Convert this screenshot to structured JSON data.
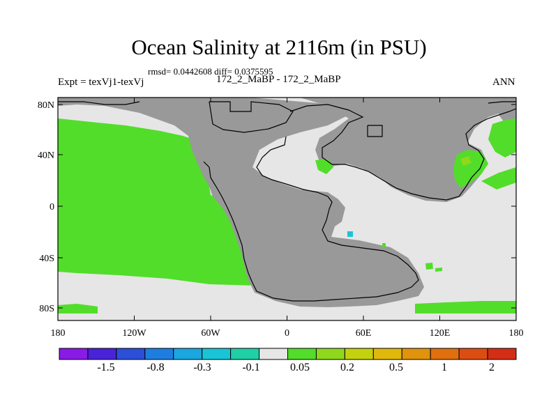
{
  "title": "Ocean Salinity at 2116m (in PSU)",
  "stats": "rmsd= 0.0442608 diff= 0.0375595",
  "experiment": "Expt = texVj1-texVj",
  "case_label": "172_2_MaBP - 172_2_MaBP",
  "season": "ANN",
  "lat_ticks": [
    "80N",
    "40N",
    "0",
    "40S",
    "80S"
  ],
  "lon_ticks": [
    "180",
    "120W",
    "60W",
    "0",
    "60E",
    "120E",
    "180"
  ],
  "colorbar": {
    "colors": [
      "#8a1ae6",
      "#4a22d8",
      "#2b4fd8",
      "#1e7ee0",
      "#1aa6df",
      "#19c4d6",
      "#20cfa6",
      "#e6e6e6",
      "#52dd2a",
      "#8fd81c",
      "#c4d10e",
      "#e0b80b",
      "#e0930b",
      "#e0700e",
      "#dd4d12",
      "#d42e16"
    ],
    "labels": [
      "-1.5",
      "-0.8",
      "-0.3",
      "-0.1",
      "0.05",
      "0.2",
      "0.5",
      "1",
      "2"
    ]
  },
  "legend": {
    "land": "#999999",
    "neutral": "#e6e6e6",
    "positive": "#52dd2a",
    "high": "#8fd81c",
    "negative": "#19c4d6"
  }
}
